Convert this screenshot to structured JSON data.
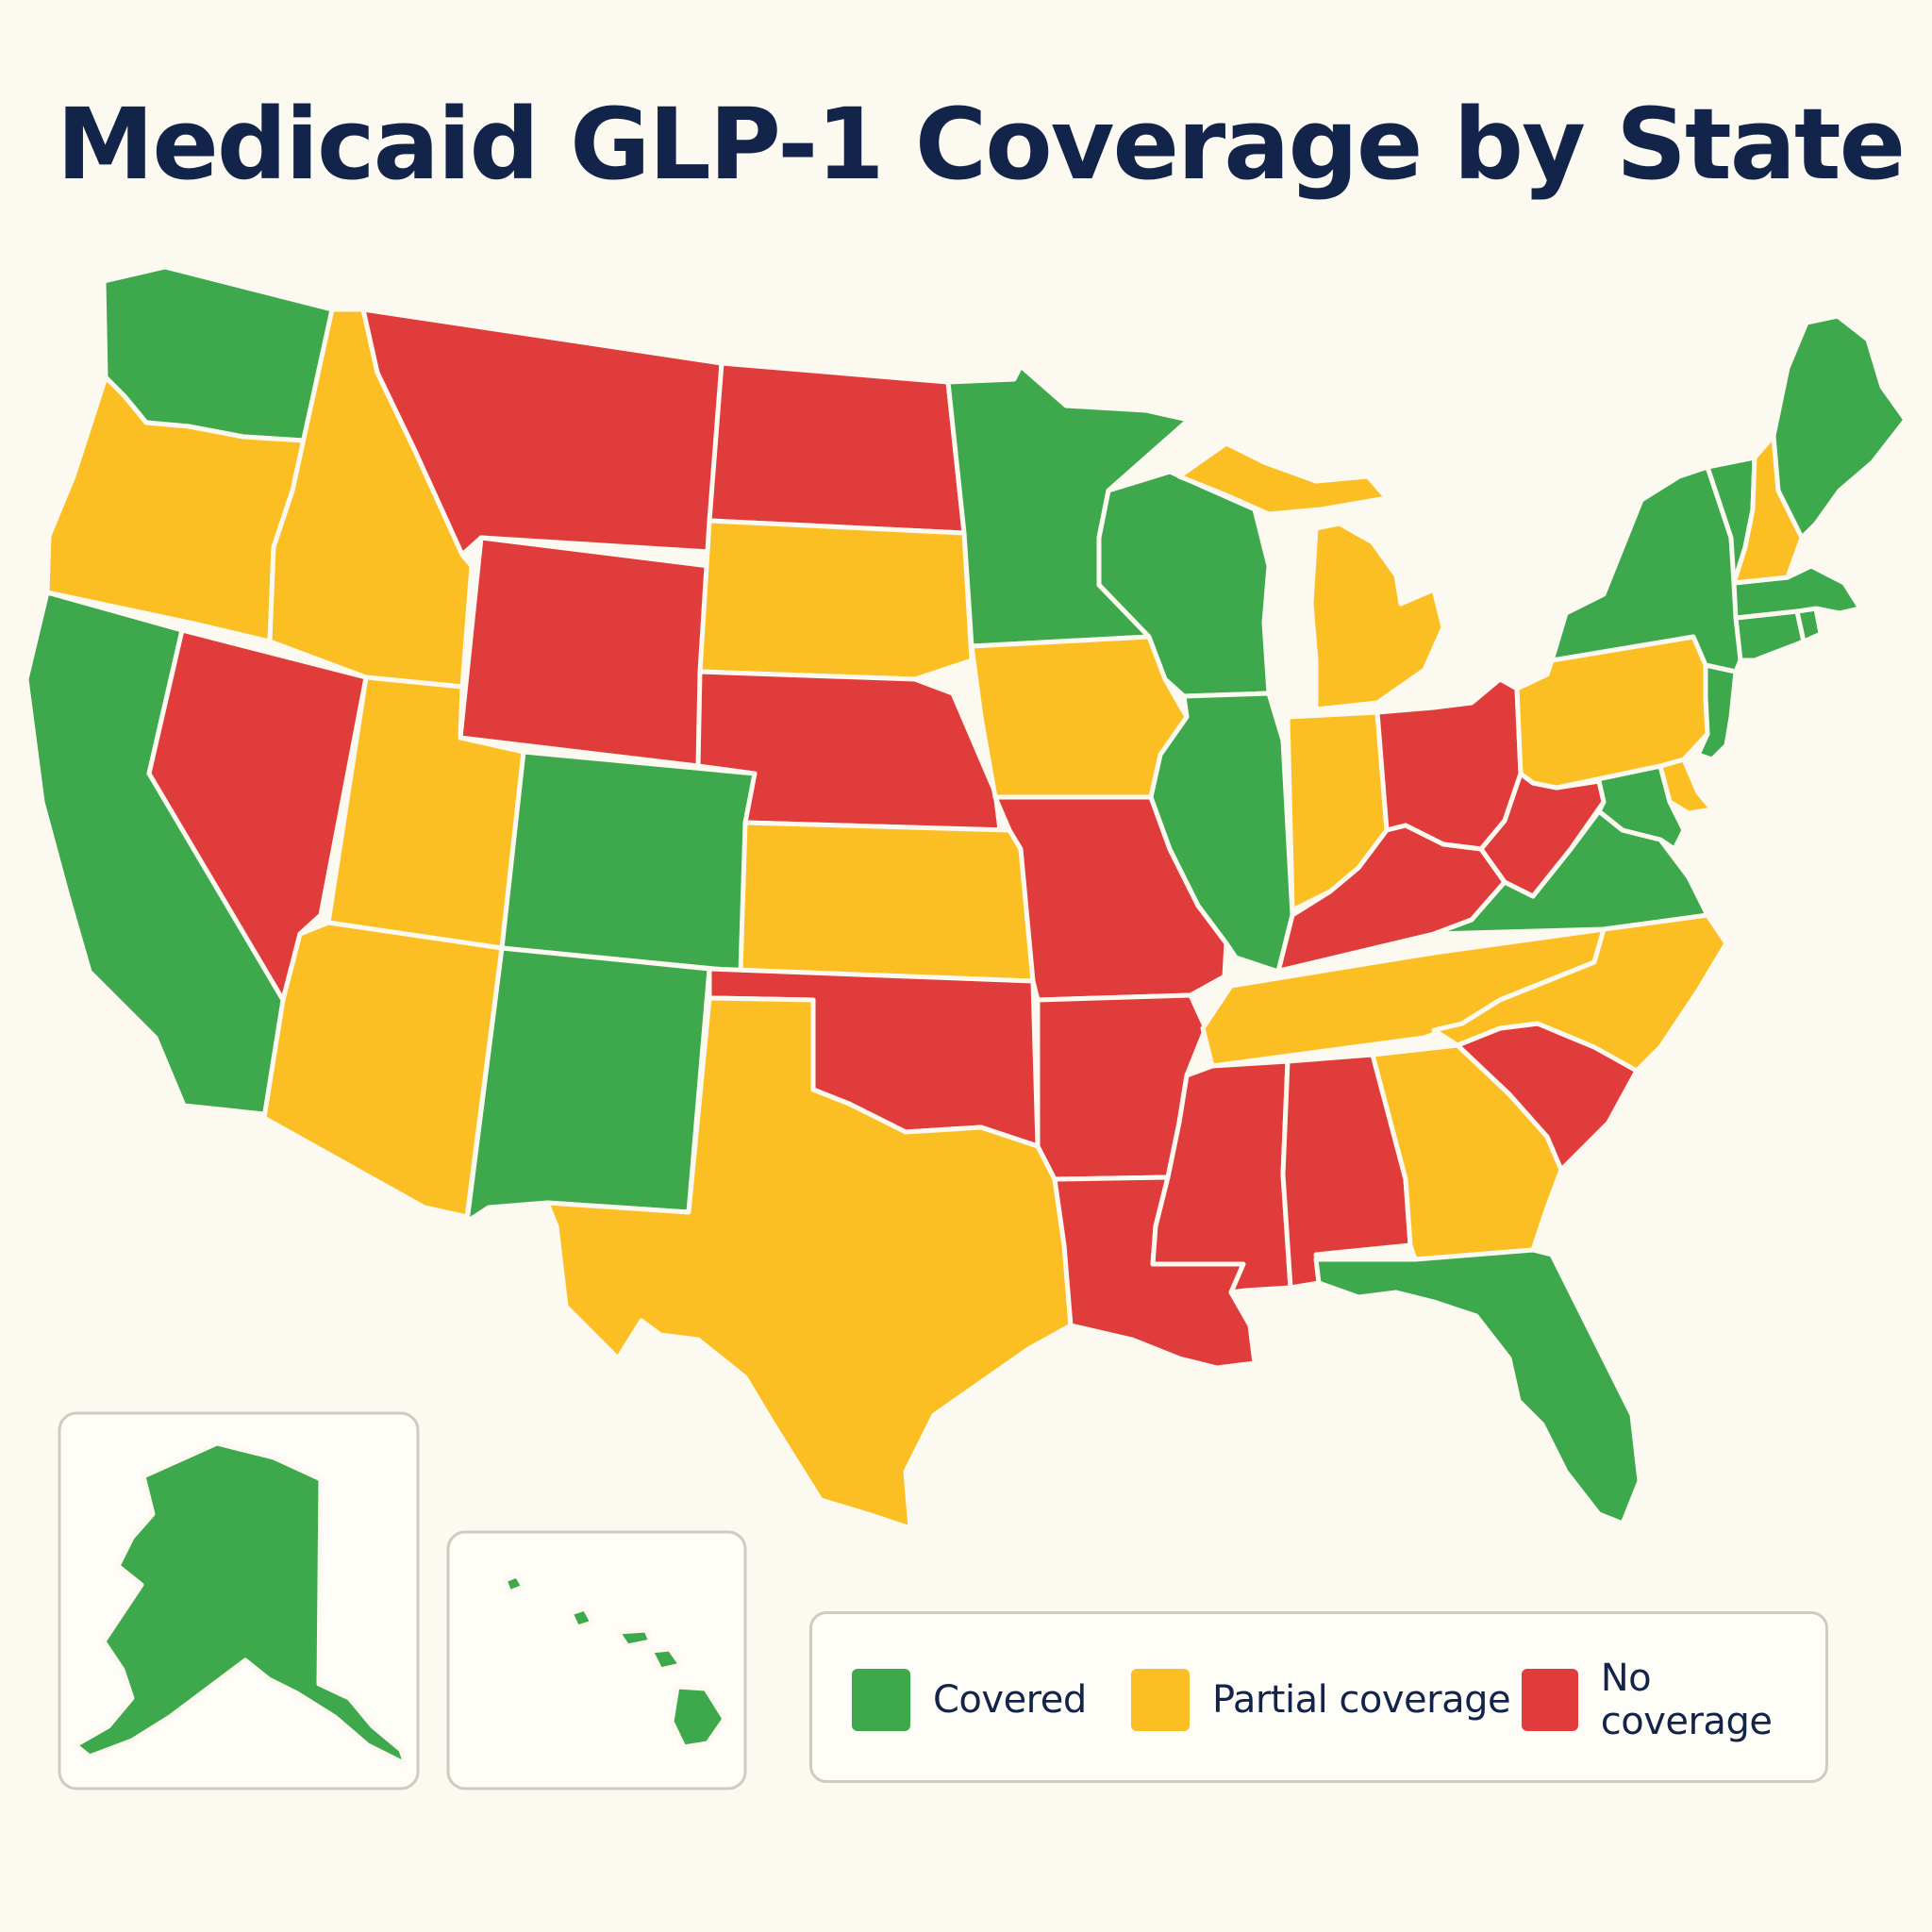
{
  "title": "Medicaid GLP-1 Coverage by State",
  "colors": {
    "covered": "#3ea84c",
    "partial": "#fbbf24",
    "none": "#e03c3c",
    "background": "#fcf9f1",
    "title": "#13244a"
  },
  "legend": [
    {
      "key": "covered",
      "label": "Covered"
    },
    {
      "key": "partial",
      "label": "Partial coverage"
    },
    {
      "key": "none",
      "label": "No coverage"
    }
  ],
  "states": {
    "WA": "covered",
    "OR": "partial",
    "CA": "covered",
    "NV": "none",
    "ID": "partial",
    "MT": "none",
    "WY": "none",
    "UT": "partial",
    "AZ": "partial",
    "CO": "covered",
    "NM": "covered",
    "ND": "none",
    "SD": "partial",
    "NE": "none",
    "KS": "partial",
    "OK": "none",
    "TX": "partial",
    "MN": "covered",
    "IA": "partial",
    "MO": "none",
    "AR": "none",
    "LA": "none",
    "WI": "covered",
    "IL": "covered",
    "MI": "partial",
    "IN": "partial",
    "OH": "none",
    "KY": "none",
    "TN": "partial",
    "MS": "none",
    "AL": "none",
    "GA": "partial",
    "FL": "covered",
    "SC": "none",
    "NC": "partial",
    "VA": "covered",
    "WV": "none",
    "MD": "covered",
    "DE": "partial",
    "PA": "partial",
    "NJ": "covered",
    "NY": "covered",
    "CT": "covered",
    "RI": "covered",
    "MA": "covered",
    "VT": "covered",
    "NH": "partial",
    "ME": "covered",
    "AK": "covered",
    "HI": "covered"
  }
}
